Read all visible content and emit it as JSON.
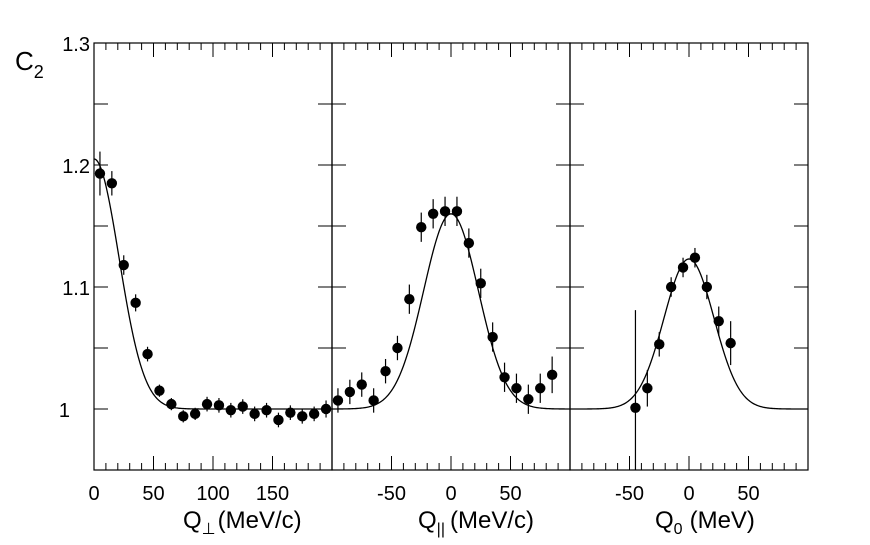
{
  "y_axis": {
    "label_main": "C",
    "label_sub": "2",
    "ticks": [
      "1",
      "1.1",
      "1.2",
      "1.3"
    ]
  },
  "panels": [
    {
      "label_main": "Q",
      "label_sub": "⊥",
      "label_rest": "(MeV/c)",
      "ticks": [
        "0",
        "50",
        "100",
        "150"
      ]
    },
    {
      "label_main": "Q",
      "label_sub": "||",
      "label_rest": "(MeV/c)",
      "ticks": [
        "-50",
        "0",
        "50"
      ]
    },
    {
      "label_main": "Q",
      "label_sub": "0",
      "label_rest": "(MeV)",
      "ticks": [
        "-50",
        "0",
        "50"
      ]
    }
  ],
  "chart_data": [
    {
      "type": "scatter",
      "xlabel": "Q⊥(MeV/c)",
      "ylabel": "C2",
      "xlim": [
        0,
        200
      ],
      "ylim": [
        0.95,
        1.3
      ],
      "points": {
        "x": [
          5,
          15,
          25,
          35,
          45,
          55,
          65,
          75,
          85,
          95,
          105,
          115,
          125,
          135,
          145,
          155,
          165,
          175,
          185,
          195
        ],
        "y": [
          1.193,
          1.185,
          1.118,
          1.087,
          1.045,
          1.015,
          1.004,
          0.994,
          0.996,
          1.004,
          1.003,
          0.999,
          1.002,
          0.996,
          0.999,
          0.991,
          0.997,
          0.994,
          0.996,
          1.0
        ],
        "err": [
          0.018,
          0.01,
          0.008,
          0.007,
          0.006,
          0.005,
          0.005,
          0.005,
          0.005,
          0.006,
          0.006,
          0.006,
          0.006,
          0.006,
          0.006,
          0.006,
          0.006,
          0.006,
          0.006,
          0.007
        ]
      },
      "fit": {
        "form": "gaussian",
        "baseline": 1.0,
        "amplitude": 0.205,
        "center": 0,
        "sigma": 21
      }
    },
    {
      "type": "scatter",
      "xlabel": "Q||(MeV/c)",
      "ylabel": "C2",
      "xlim": [
        -100,
        100
      ],
      "ylim": [
        0.95,
        1.3
      ],
      "points": {
        "x": [
          -95,
          -85,
          -75,
          -65,
          -55,
          -45,
          -35,
          -25,
          -15,
          -5,
          5,
          15,
          25,
          35,
          45,
          55,
          65,
          75,
          85
        ],
        "y": [
          1.007,
          1.014,
          1.02,
          1.007,
          1.031,
          1.05,
          1.09,
          1.149,
          1.16,
          1.162,
          1.162,
          1.136,
          1.103,
          1.059,
          1.026,
          1.017,
          1.008,
          1.017,
          1.028
        ],
        "err": [
          0.01,
          0.01,
          0.01,
          0.01,
          0.01,
          0.01,
          0.012,
          0.012,
          0.012,
          0.012,
          0.012,
          0.012,
          0.012,
          0.012,
          0.012,
          0.012,
          0.012,
          0.012,
          0.015
        ]
      },
      "fit": {
        "form": "gaussian",
        "baseline": 1.0,
        "amplitude": 0.16,
        "center": 0,
        "sigma": 23
      }
    },
    {
      "type": "scatter",
      "xlabel": "Q0 (MeV)",
      "ylabel": "C2",
      "xlim": [
        -100,
        100
      ],
      "ylim": [
        0.95,
        1.3
      ],
      "points": {
        "x": [
          -45,
          -35,
          -25,
          -15,
          -5,
          5,
          15,
          25,
          35
        ],
        "y": [
          1.001,
          1.017,
          1.053,
          1.1,
          1.116,
          1.124,
          1.1,
          1.072,
          1.054
        ],
        "err": [
          0.08,
          0.015,
          0.01,
          0.008,
          0.008,
          0.008,
          0.01,
          0.012,
          0.018
        ]
      },
      "fit": {
        "form": "gaussian",
        "baseline": 1.0,
        "amplitude": 0.123,
        "center": 0,
        "sigma": 21
      }
    }
  ]
}
